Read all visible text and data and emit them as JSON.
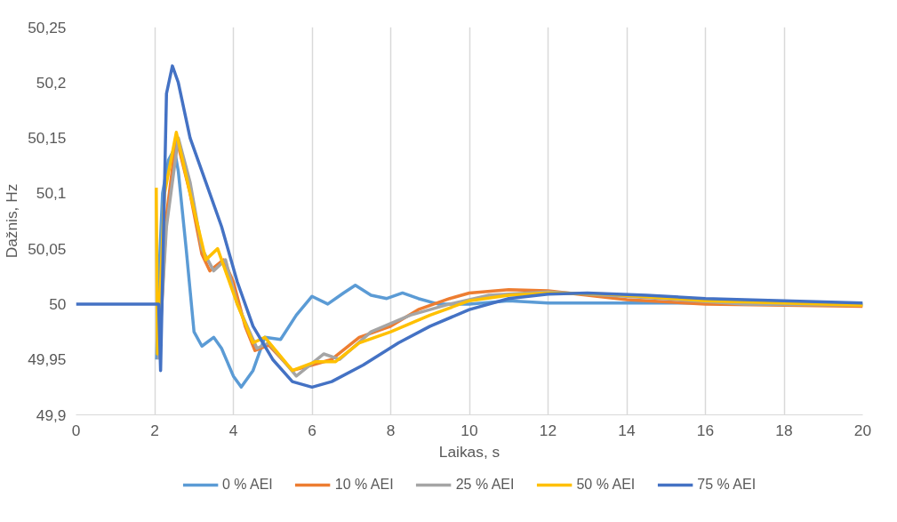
{
  "chart_data": {
    "type": "line",
    "xlabel": "Laikas, s",
    "ylabel": "Dažnis, Hz",
    "xlim": [
      0,
      20
    ],
    "xticks": [
      0,
      2,
      4,
      6,
      8,
      10,
      12,
      14,
      16,
      18,
      20
    ],
    "ylim": [
      49.9,
      50.25
    ],
    "yticks": [
      {
        "value": 49.9,
        "label": "49,9"
      },
      {
        "value": 49.95,
        "label": "49,95"
      },
      {
        "value": 50,
        "label": "50"
      },
      {
        "value": 50.05,
        "label": "50,05"
      },
      {
        "value": 50.1,
        "label": "50,1"
      },
      {
        "value": 50.15,
        "label": "50,15"
      },
      {
        "value": 50.2,
        "label": "50,2"
      },
      {
        "value": 50.25,
        "label": "50,25"
      }
    ],
    "grid": "x",
    "legend": "bottom",
    "marker": "none",
    "line_style": "solid",
    "series": [
      {
        "name": "0 % AEI",
        "color": "#5b9bd5",
        "x": [
          2.05,
          2.1,
          2.2,
          2.35,
          2.5,
          2.6,
          2.8,
          3.0,
          3.2,
          3.5,
          3.7,
          4.0,
          4.2,
          4.5,
          4.8,
          5.2,
          5.6,
          6.0,
          6.4,
          6.8,
          7.1,
          7.5,
          7.9,
          8.3,
          8.7,
          9.2,
          10,
          11,
          12,
          14,
          16,
          18,
          20
        ],
        "values": [
          49.95,
          50.02,
          50.1,
          50.13,
          50.14,
          50.12,
          50.05,
          49.975,
          49.962,
          49.97,
          49.96,
          49.935,
          49.925,
          49.94,
          49.97,
          49.968,
          49.99,
          50.007,
          50.0,
          50.01,
          50.017,
          50.008,
          50.005,
          50.01,
          50.005,
          50.0,
          50.0,
          50.003,
          50.001,
          50.001,
          50.001,
          50.0,
          50.0
        ]
      },
      {
        "name": "10 % AEI",
        "color": "#ed7d31",
        "x": [
          2.1,
          2.3,
          2.55,
          2.9,
          3.2,
          3.4,
          3.75,
          4.0,
          4.3,
          4.55,
          4.9,
          5.5,
          6.0,
          6.5,
          7.2,
          8.0,
          8.7,
          9.5,
          10,
          11,
          12,
          13,
          14,
          16,
          20
        ],
        "values": [
          49.95,
          50.08,
          50.15,
          50.1,
          50.045,
          50.03,
          50.04,
          50.02,
          49.98,
          49.958,
          49.963,
          49.94,
          49.945,
          49.95,
          49.97,
          49.98,
          49.995,
          50.005,
          50.01,
          50.013,
          50.012,
          50.008,
          50.004,
          50.0,
          49.998
        ]
      },
      {
        "name": "25 % AEI",
        "color": "#a5a5a5",
        "x": [
          2.1,
          2.3,
          2.6,
          2.9,
          3.2,
          3.5,
          3.8,
          4.1,
          4.6,
          4.9,
          5.6,
          6.3,
          6.7,
          7.5,
          8.5,
          9.5,
          10.5,
          12,
          14,
          17,
          20
        ],
        "values": [
          49.95,
          50.07,
          50.15,
          50.11,
          50.05,
          50.03,
          50.04,
          50.0,
          49.96,
          49.965,
          49.935,
          49.955,
          49.95,
          49.975,
          49.99,
          50.0,
          50.008,
          50.011,
          50.007,
          50.0,
          49.999
        ]
      },
      {
        "name": "50 % AEI",
        "color": "#ffc000",
        "x": [
          2.04,
          2.07,
          2.25,
          2.55,
          2.9,
          3.3,
          3.6,
          4.1,
          4.5,
          4.8,
          5.5,
          6.1,
          6.6,
          7.2,
          8.0,
          9.0,
          10,
          11,
          12,
          13.5,
          16,
          20
        ],
        "values": [
          50.105,
          49.955,
          50.1,
          50.155,
          50.1,
          50.04,
          50.05,
          50.0,
          49.965,
          49.97,
          49.94,
          49.948,
          49.948,
          49.965,
          49.975,
          49.99,
          50.003,
          50.008,
          50.01,
          50.009,
          50.003,
          49.999
        ]
      },
      {
        "name": "75 % AEI",
        "color": "#4472c4",
        "x": [
          0,
          2.1,
          2.15,
          2.3,
          2.45,
          2.6,
          2.9,
          3.3,
          3.7,
          4.1,
          4.5,
          5.0,
          5.5,
          6.0,
          6.5,
          7.3,
          8.2,
          9.0,
          10,
          11,
          12,
          13,
          14.5,
          16,
          18,
          20
        ],
        "values": [
          50,
          50,
          49.94,
          50.19,
          50.215,
          50.2,
          50.15,
          50.11,
          50.07,
          50.02,
          49.98,
          49.95,
          49.93,
          49.925,
          49.93,
          49.945,
          49.965,
          49.98,
          49.995,
          50.005,
          50.009,
          50.01,
          50.008,
          50.005,
          50.003,
          50.001
        ]
      }
    ]
  }
}
